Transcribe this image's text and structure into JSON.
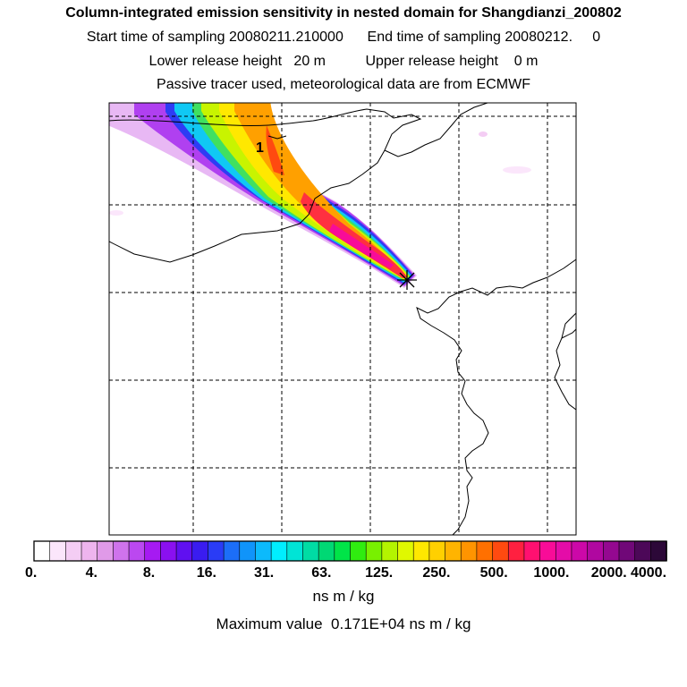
{
  "header": {
    "title": "Column-integrated emission sensitivity in nested domain for Shangdianzi_200802",
    "sampling_line": "Start time of sampling 20080211.210000      End time of sampling 20080212.     0",
    "release_line": "Lower release height   20 m          Upper release height    0 m",
    "tracer_line": "Passive tracer used, meteorological data are from ECMWF"
  },
  "map": {
    "contour_label": "1",
    "station_marker": "asterisk-marker"
  },
  "colorbar": {
    "colors": [
      "#ffffff",
      "#fbe6fb",
      "#f4cdf4",
      "#eeb4ee",
      "#e09ae8",
      "#cf73ec",
      "#bb48f0",
      "#a61af2",
      "#8a10f0",
      "#6010f0",
      "#3a1cf0",
      "#2a3cf6",
      "#1c6ef8",
      "#1094fa",
      "#0cbafc",
      "#00eeff",
      "#00e4d6",
      "#00dca4",
      "#00d874",
      "#00e448",
      "#30ec10",
      "#78f000",
      "#b4f400",
      "#e0f800",
      "#ffe800",
      "#ffd000",
      "#ffb400",
      "#ff9400",
      "#ff7000",
      "#ff4a10",
      "#ff2040",
      "#ff1070",
      "#f80c98",
      "#e40ca8",
      "#cc08a8",
      "#b008a0",
      "#940890",
      "#700878",
      "#4c0858",
      "#2c0838"
    ],
    "tick_labels": [
      "0.",
      "4.",
      "8.",
      "16.",
      "31.",
      "63.",
      "125.",
      "250.",
      "500.",
      "1000.",
      "2000.",
      "4000."
    ]
  },
  "footer": {
    "units": "ns m / kg",
    "maximum": "Maximum value  0.171E+04 ns m / kg"
  }
}
